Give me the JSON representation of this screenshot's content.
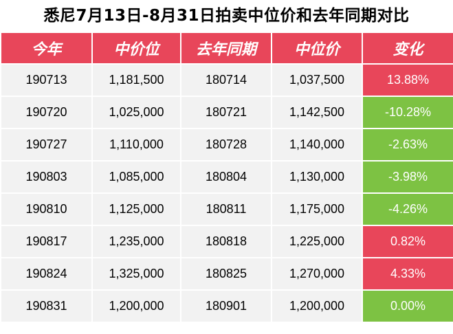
{
  "title": "悉尼7月13日-8月31日拍卖中位价和去年同期对比",
  "headers": [
    "今年",
    "中价位",
    "去年同期",
    "中位价",
    "变化"
  ],
  "rows": [
    {
      "this_year": "190713",
      "median": "1,181,500",
      "last_year": "180714",
      "last_median": "1,037,500",
      "change": "13.88%",
      "direction": "up"
    },
    {
      "this_year": "190720",
      "median": "1,025,000",
      "last_year": "180721",
      "last_median": "1,142,500",
      "change": "-10.28%",
      "direction": "down"
    },
    {
      "this_year": "190727",
      "median": "1,110,000",
      "last_year": "180728",
      "last_median": "1,140,000",
      "change": "-2.63%",
      "direction": "down"
    },
    {
      "this_year": "190803",
      "median": "1,085,000",
      "last_year": "180804",
      "last_median": "1,130,000",
      "change": "-3.98%",
      "direction": "down"
    },
    {
      "this_year": "190810",
      "median": "1,125,000",
      "last_year": "180811",
      "last_median": "1,175,000",
      "change": "-4.26%",
      "direction": "down"
    },
    {
      "this_year": "190817",
      "median": "1,235,000",
      "last_year": "180818",
      "last_median": "1,225,000",
      "change": "0.82%",
      "direction": "up"
    },
    {
      "this_year": "190824",
      "median": "1,325,000",
      "last_year": "180825",
      "last_median": "1,270,000",
      "change": "4.33%",
      "direction": "up"
    },
    {
      "this_year": "190831",
      "median": "1,200,000",
      "last_year": "180901",
      "last_median": "1,200,000",
      "change": "0.00%",
      "direction": "down"
    }
  ],
  "colors": {
    "header_bg": "#e8465a",
    "up": "#e8465a",
    "down": "#7dc243",
    "cell_bg": "#f2f2f2"
  }
}
